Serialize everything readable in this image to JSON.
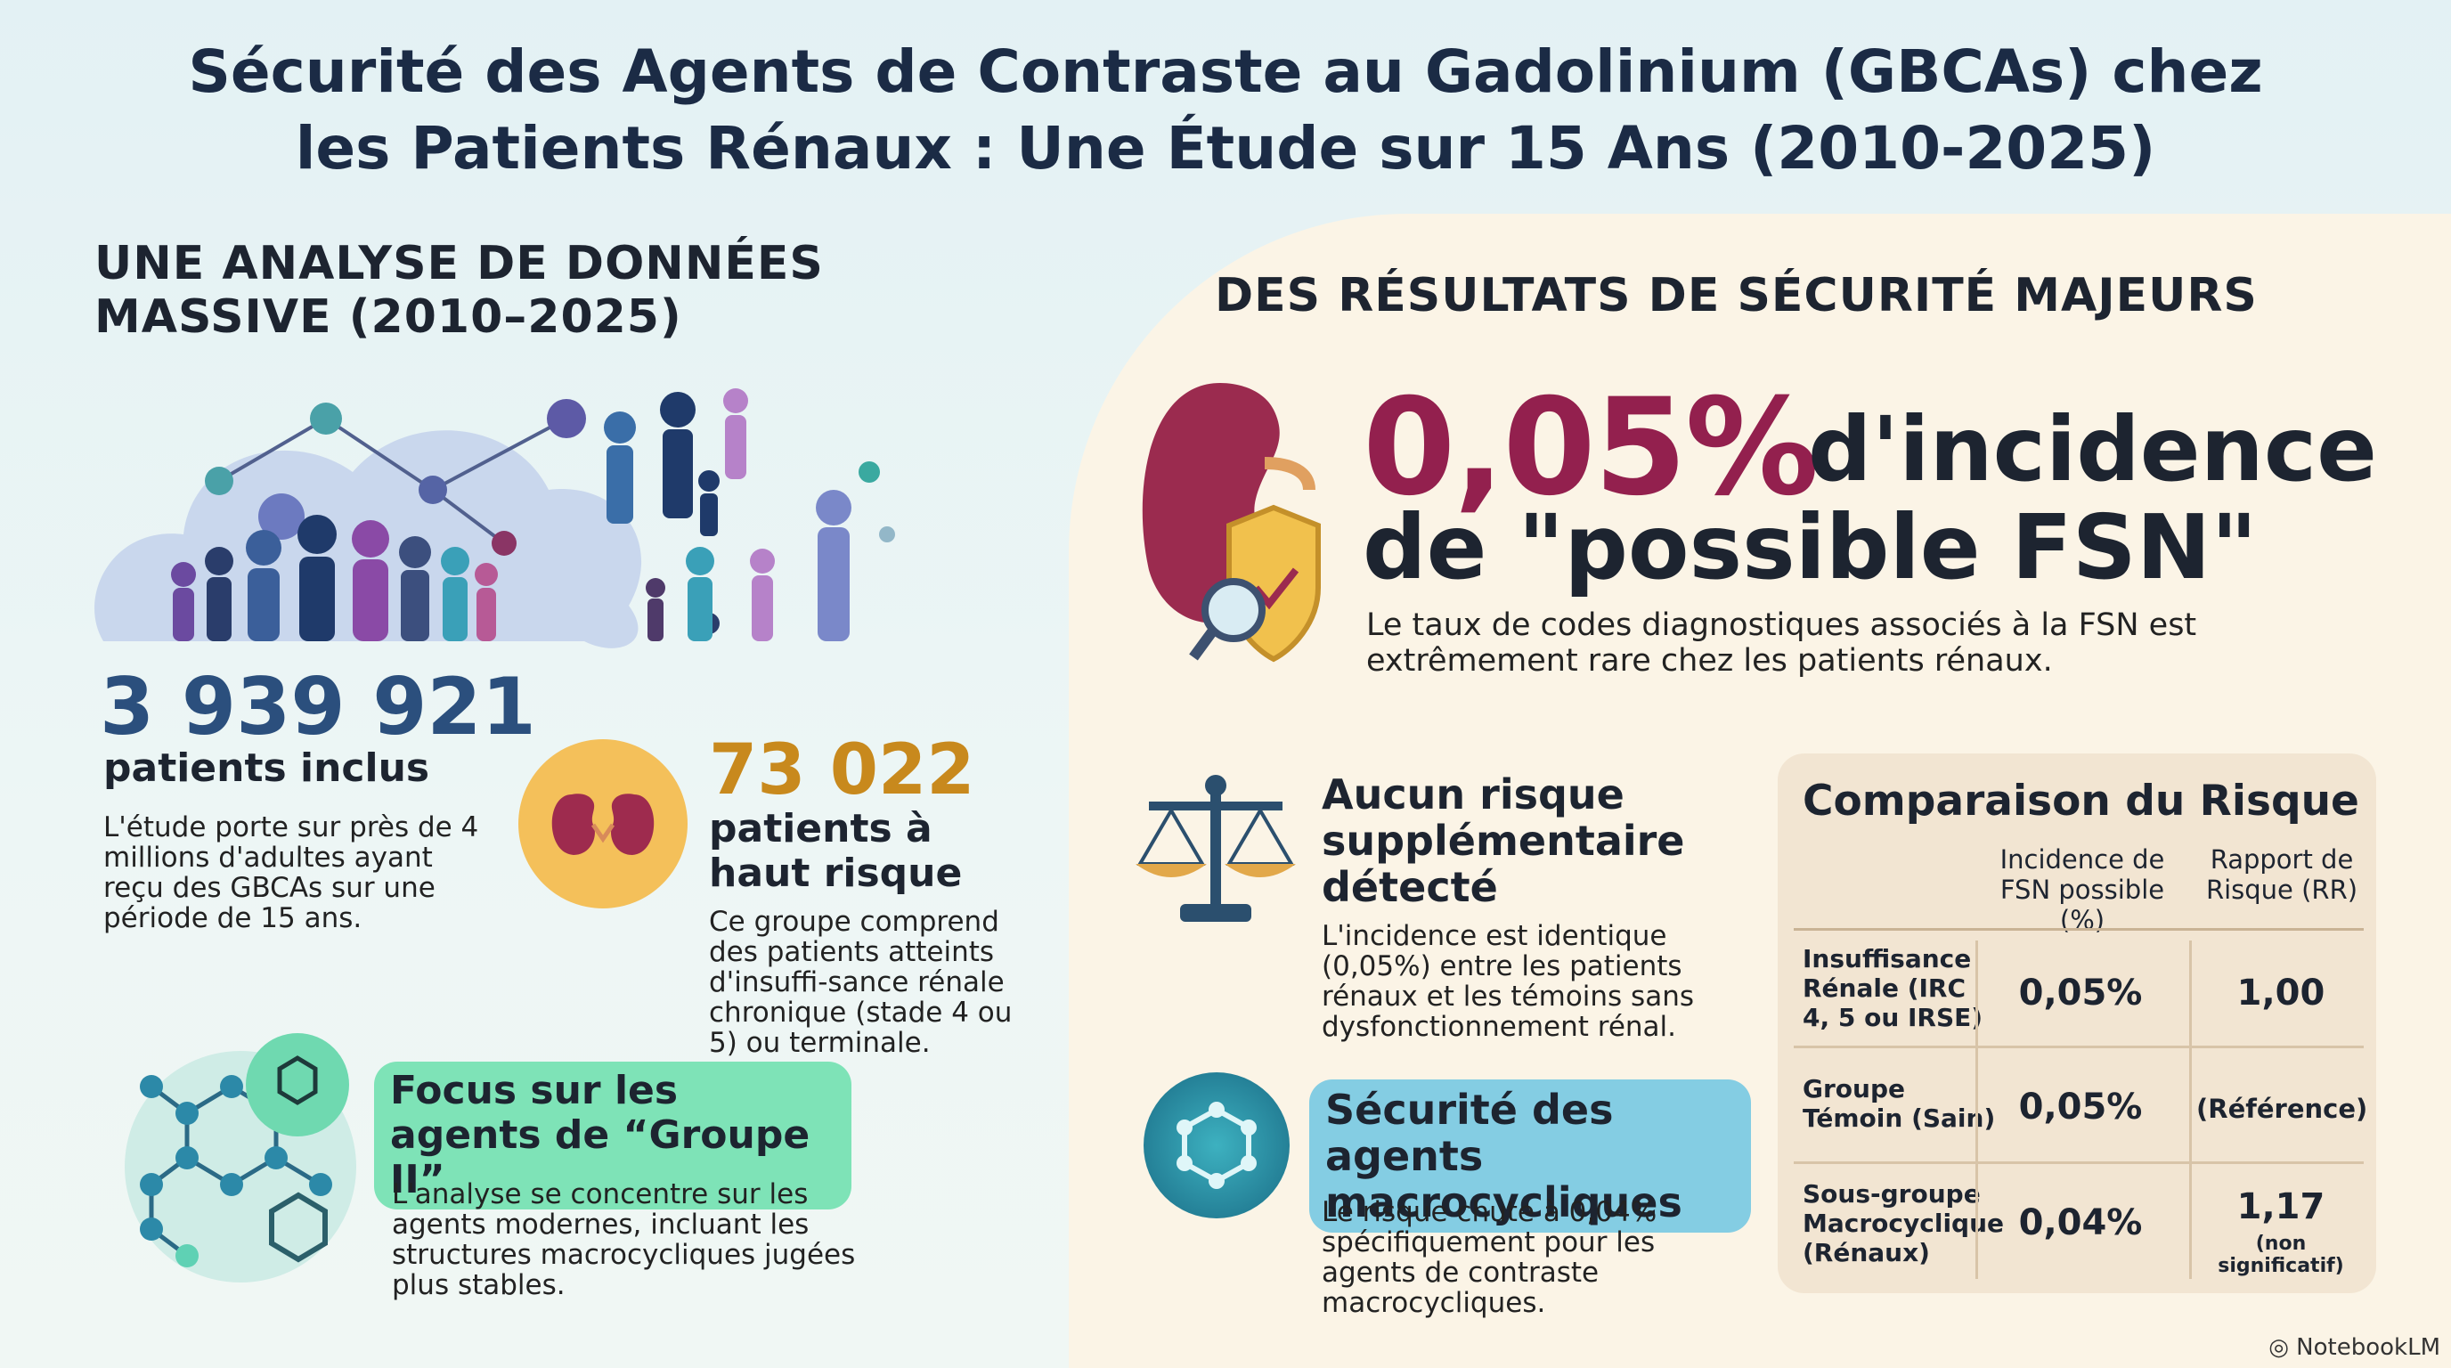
{
  "title": "Sécurité des Agents de Contraste au Gadolinium (GBCAs) chez les Patients Rénaux : Une Étude sur 15 Ans (2010-2025)",
  "left": {
    "heading": "UNE ANALYSE DE DONNÉES MASSIVE (2010–2025)",
    "patients_number": "3 939 921",
    "patients_label": "patients inclus",
    "patients_desc": "L'étude porte sur près de 4 millions d'adultes ayant reçu des GBCAs sur une période de 15 ans.",
    "risk_number": "73 022",
    "risk_label": "patients à haut risque",
    "risk_desc": "Ce groupe comprend des patients atteints d'insuffi-sance rénale chronique (stade 4 ou 5) ou terminale.",
    "focus_title": "Focus sur les agents de “Groupe II”",
    "focus_desc": "L'analyse se concentre sur les agents modernes, incluant les structures macrocycliques jugées plus stables."
  },
  "right": {
    "heading": "DES RÉSULTATS DE SÉCURITÉ MAJEURS",
    "kpi_value": "0,05%",
    "kpi_label_1": "d'incidence",
    "kpi_label_2": "de \"possible FSN\"",
    "kpi_desc": "Le taux de codes diagnostiques associés à la FSN est extrêmement rare chez les patients rénaux.",
    "no_risk_title": "Aucun risque supplémentaire détecté",
    "no_risk_desc": "L'incidence est identique (0,05%) entre les patients rénaux et les témoins sans dysfonctionnement rénal.",
    "macro_title": "Sécurité des agents macrocycliques",
    "macro_desc": "Le risque chute à 0,04% spécifiquement pour les agents de contraste macrocycliques."
  },
  "table": {
    "title": "Comparaison du Risque",
    "col1": "Incidence de FSN possible (%)",
    "col2": "Rapport de Risque (RR)",
    "rows": [
      {
        "label": "Insuffisance Rénale (IRC 4, 5 ou IRSE)",
        "incidence": "0,05%",
        "rr": "1,00",
        "note": ""
      },
      {
        "label": "Groupe Témoin (Sain)",
        "incidence": "0,05%",
        "rr": "(Référence)",
        "note": ""
      },
      {
        "label": "Sous-groupe Macrocyclique (Rénaux)",
        "incidence": "0,04%",
        "rr": "1,17",
        "note": "(non significatif)"
      }
    ]
  },
  "footer": "NotebookLM"
}
